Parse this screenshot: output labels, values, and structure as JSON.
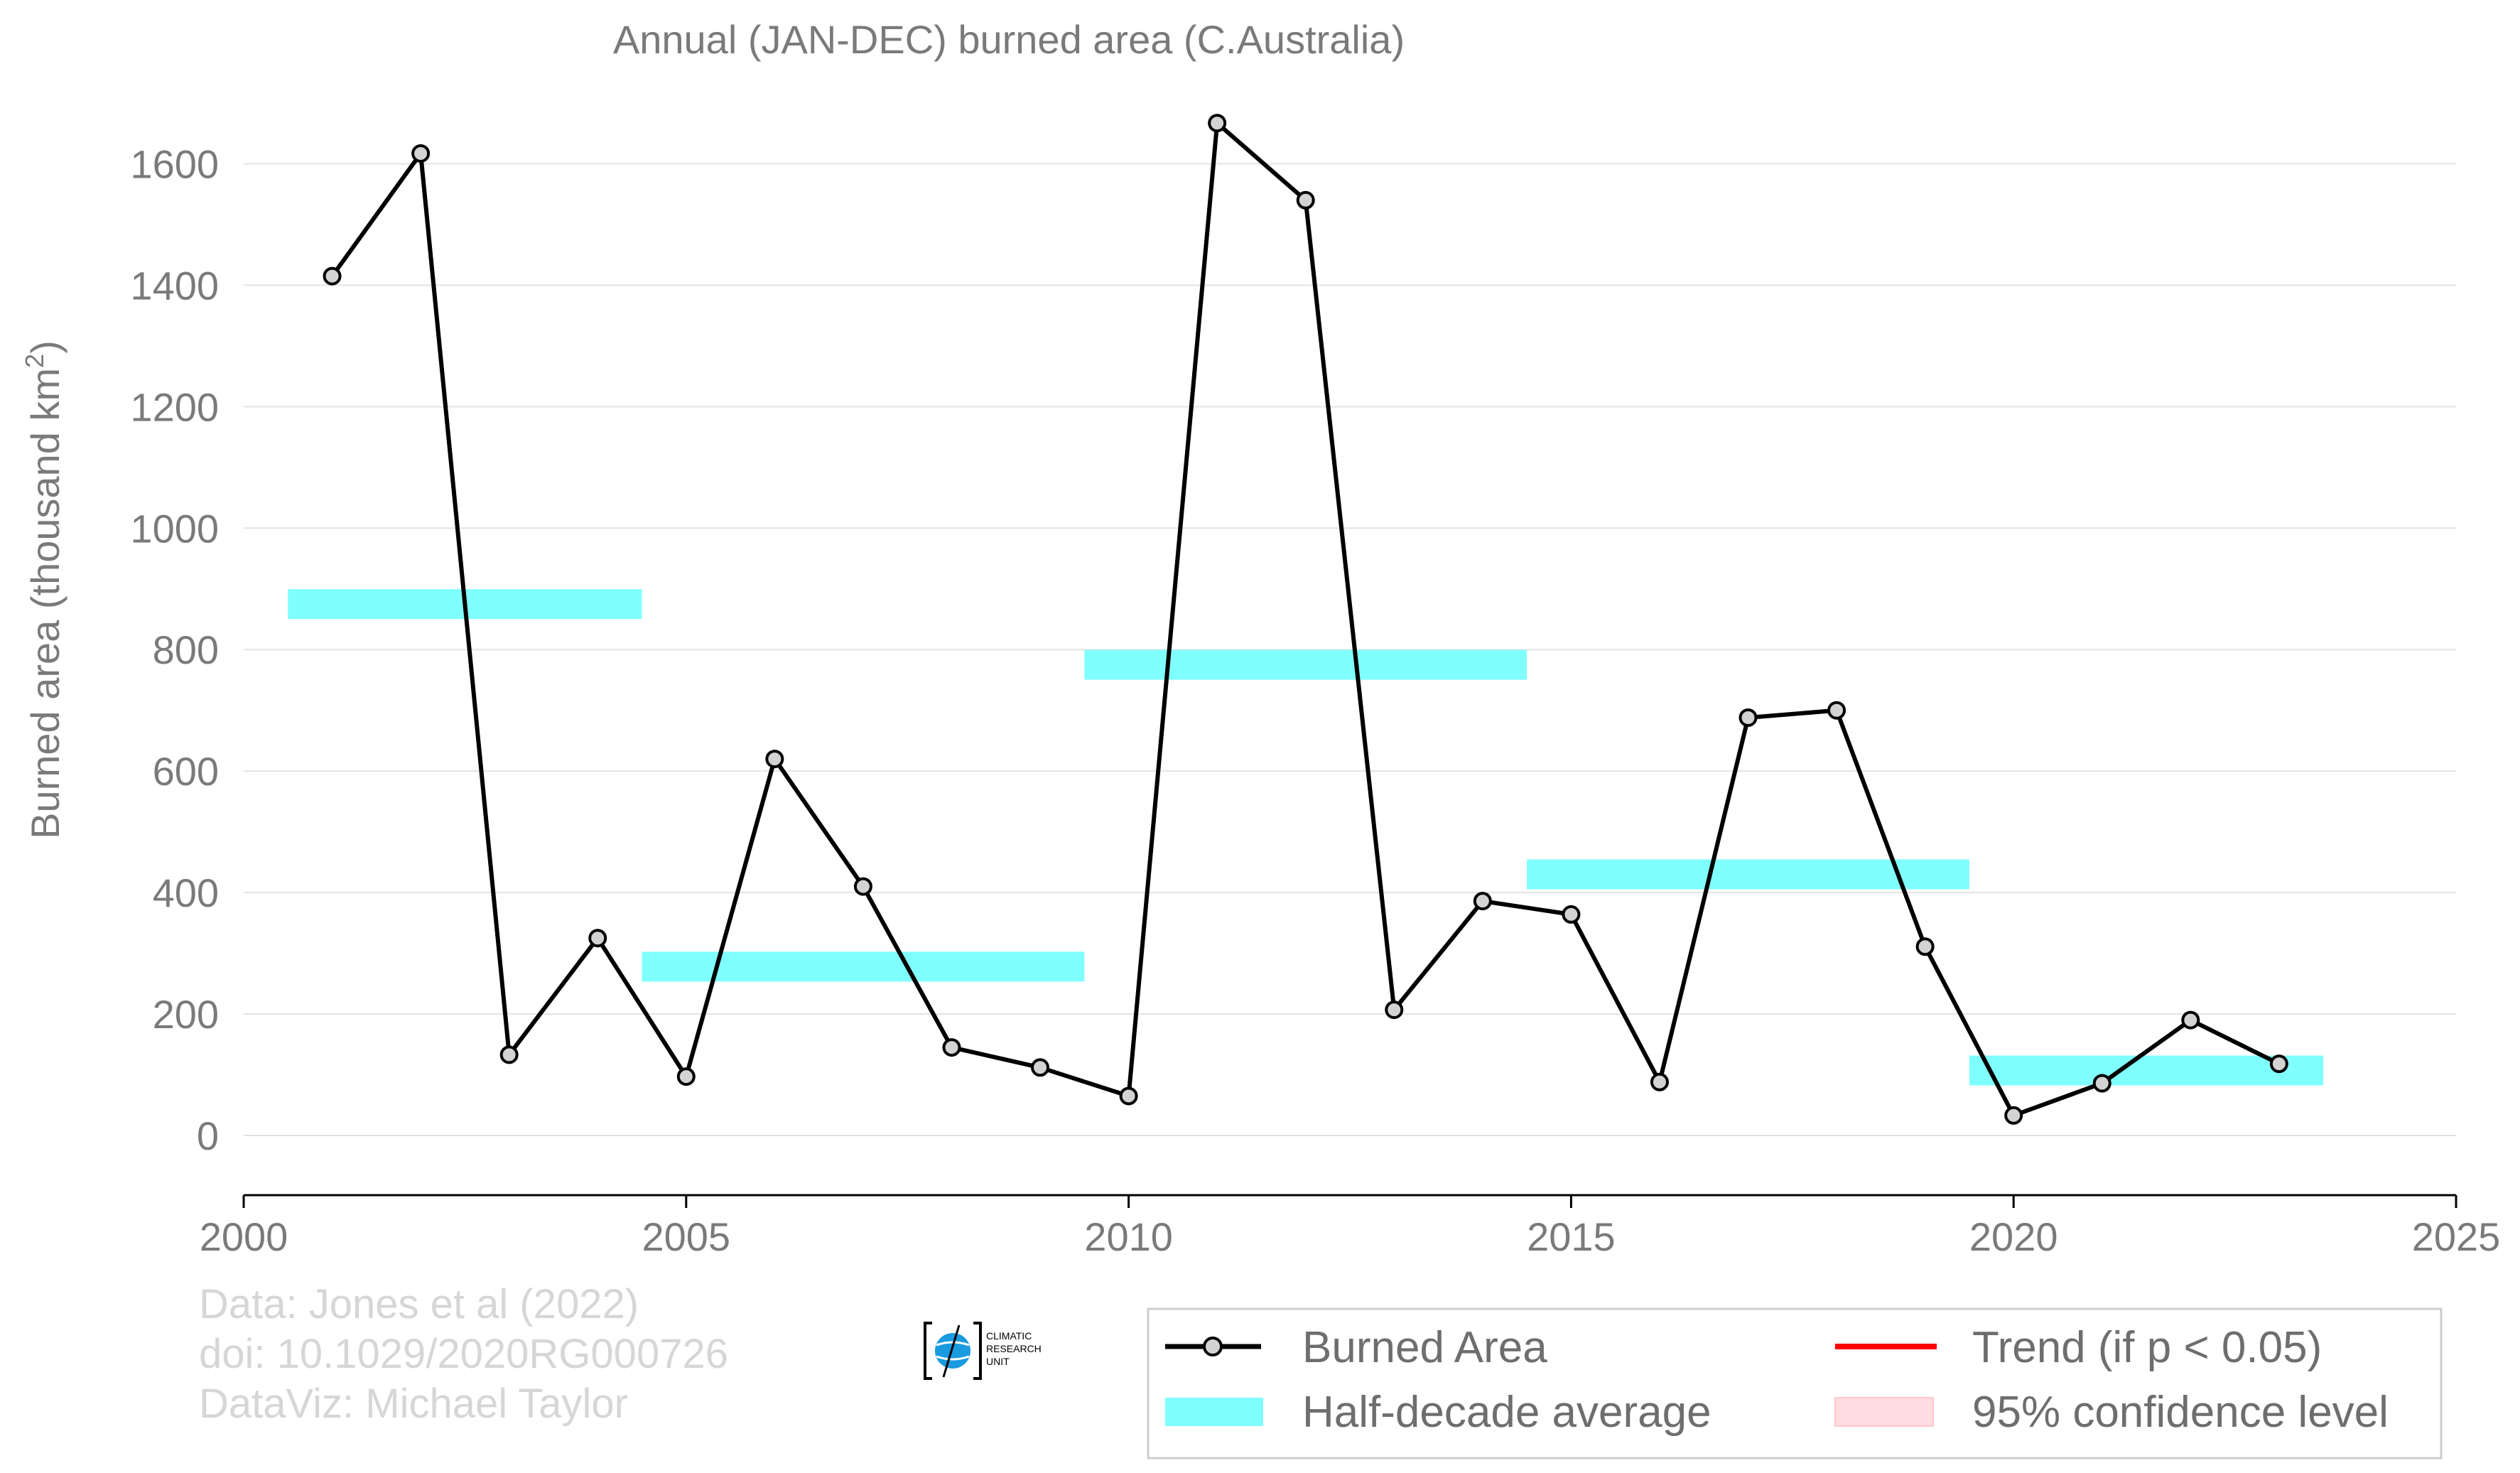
{
  "chart_data": {
    "type": "line",
    "title": "Annual (JAN-DEC) burned area (C.Australia)",
    "ylabel": "Burned area (thousand km",
    "ylabel_sup": "2",
    "ylabel_end": ")",
    "xlabel": "",
    "xlim": [
      2000,
      2025
    ],
    "ylim": [
      -100,
      1700
    ],
    "xticks": [
      2000,
      2005,
      2010,
      2015,
      2020,
      2025
    ],
    "yticks": [
      0,
      200,
      400,
      600,
      800,
      1000,
      1200,
      1400,
      1600
    ],
    "grid": true,
    "series": [
      {
        "name": "Burned Area",
        "color": "#000000",
        "marker_fill": "#d3d3d3",
        "x": [
          2001,
          2002,
          2003,
          2004,
          2005,
          2006,
          2007,
          2008,
          2009,
          2010,
          2011,
          2012,
          2013,
          2014,
          2015,
          2016,
          2017,
          2018,
          2019,
          2020,
          2021,
          2022,
          2023
        ],
        "y": [
          1415,
          1617,
          133,
          325,
          97,
          620,
          410,
          145,
          112,
          65,
          1667,
          1540,
          207,
          386,
          364,
          88,
          688,
          700,
          311,
          33,
          86,
          190,
          118
        ]
      }
    ],
    "half_decade_average": {
      "name": "Half-decade average",
      "color": "#80ffff",
      "segments": [
        {
          "x0": 2000.5,
          "x1": 2004.5,
          "y": 875
        },
        {
          "x0": 2004.5,
          "x1": 2009.5,
          "y": 278
        },
        {
          "x0": 2009.5,
          "x1": 2014.5,
          "y": 775
        },
        {
          "x0": 2014.5,
          "x1": 2019.5,
          "y": 430
        },
        {
          "x0": 2019.5,
          "x1": 2023.5,
          "y": 107
        }
      ]
    },
    "legend": {
      "position": "bottom-right",
      "entries": [
        {
          "label": "Burned Area",
          "color": "#000000"
        },
        {
          "label": "Trend (if p < 0.05)",
          "color": "#ff0000"
        },
        {
          "label": "Half-decade average",
          "color": "#80ffff"
        },
        {
          "label": "95% confidence level",
          "color": "#ffdde0"
        }
      ]
    }
  },
  "credits": {
    "line1": "Data: Jones et al (2022)",
    "line2": "doi: 10.1029/2020RG000726",
    "line3": "DataViz: Michael Taylor"
  },
  "logo": {
    "text1": "CLIMATIC",
    "text2": "RESEARCH",
    "text3": "UNIT"
  }
}
